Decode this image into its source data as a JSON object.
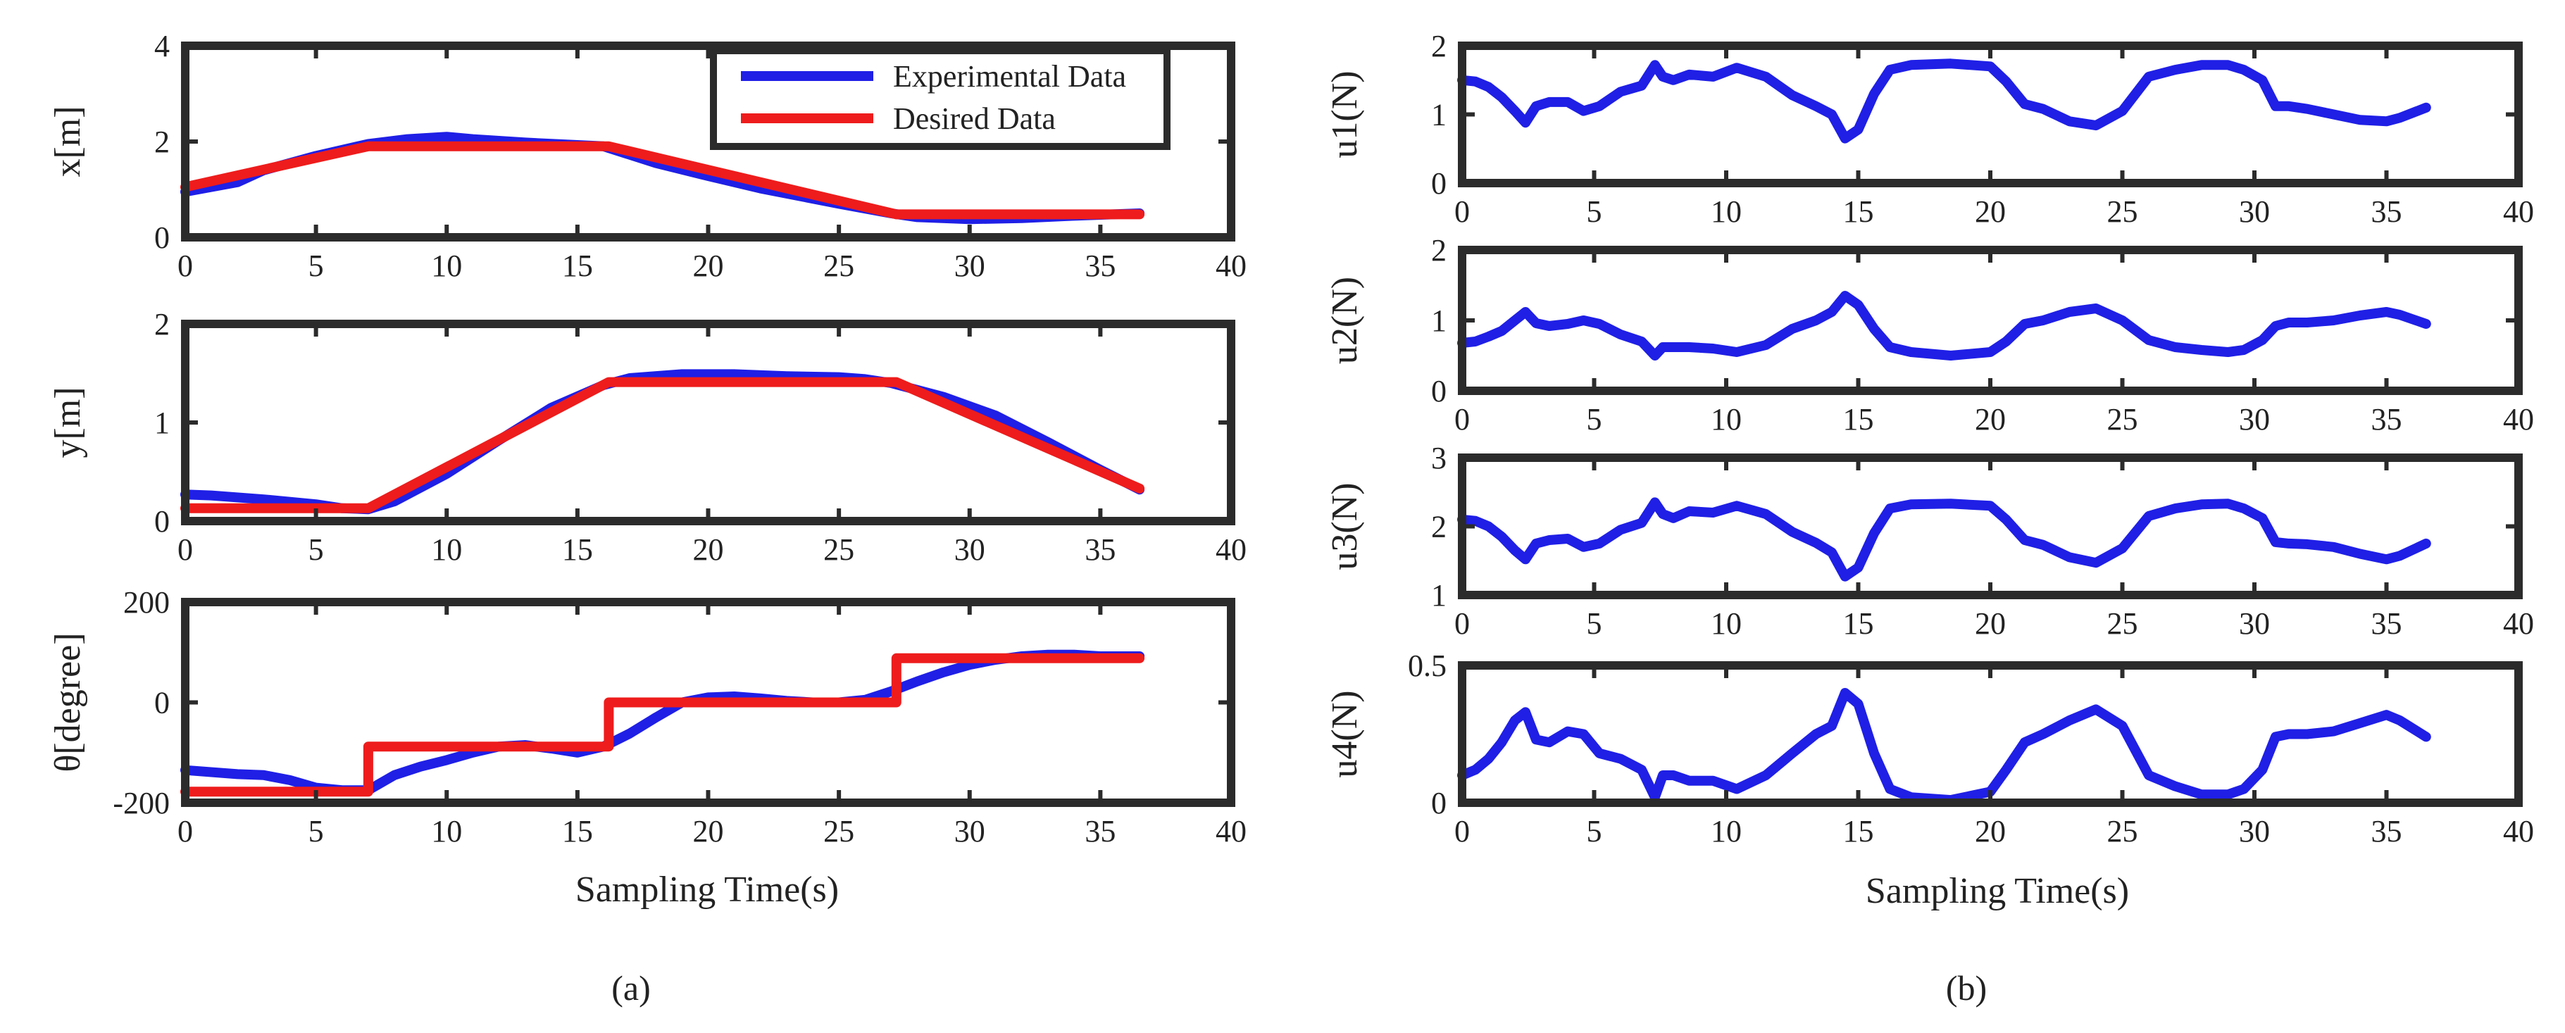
{
  "colors": {
    "experimental": "#1f1fe6",
    "desired": "#ee1c1c",
    "axis": "#2b2b2b"
  },
  "legend": {
    "experimental": "Experimental Data",
    "desired": "Desired Data",
    "placement": "top-right of first panel"
  },
  "captions": {
    "a": "(a)",
    "b": "(b)"
  },
  "xlabel": "Sampling Time(s)",
  "chart_data": [
    {
      "type": "line",
      "panel": "a1",
      "ylabel": "x[m]",
      "xlim": [
        0,
        40
      ],
      "ylim": [
        0,
        4
      ],
      "xticks": [
        0,
        5,
        10,
        15,
        20,
        25,
        30,
        35,
        40
      ],
      "yticks": [
        0,
        2,
        4
      ],
      "series": [
        {
          "name": "Experimental Data",
          "color_key": "experimental",
          "x": [
            0,
            2,
            3,
            5,
            7,
            8.5,
            10,
            11,
            13,
            16,
            18,
            20,
            22,
            25,
            27,
            28,
            30,
            32,
            34,
            36.5
          ],
          "y": [
            0.95,
            1.15,
            1.4,
            1.7,
            1.95,
            2.05,
            2.1,
            2.05,
            1.98,
            1.9,
            1.55,
            1.28,
            1.02,
            0.7,
            0.5,
            0.42,
            0.38,
            0.4,
            0.45,
            0.5
          ]
        },
        {
          "name": "Desired Data",
          "color_key": "desired",
          "x": [
            0,
            7,
            16.2,
            27.2,
            36.5
          ],
          "y": [
            1.05,
            1.9,
            1.9,
            0.48,
            0.48
          ]
        }
      ]
    },
    {
      "type": "line",
      "panel": "a2",
      "ylabel": "y[m]",
      "xlim": [
        0,
        40
      ],
      "ylim": [
        0,
        2
      ],
      "xticks": [
        0,
        5,
        10,
        15,
        20,
        25,
        30,
        35,
        40
      ],
      "yticks": [
        0,
        1,
        2
      ],
      "series": [
        {
          "name": "Experimental Data",
          "color_key": "experimental",
          "x": [
            0,
            1,
            3,
            5,
            6,
            7,
            8,
            10,
            12,
            14,
            16,
            17,
            19,
            21,
            23,
            25,
            26,
            27,
            29,
            31,
            33,
            35,
            36.5
          ],
          "y": [
            0.27,
            0.26,
            0.22,
            0.17,
            0.13,
            0.12,
            0.2,
            0.48,
            0.82,
            1.15,
            1.38,
            1.45,
            1.49,
            1.49,
            1.47,
            1.46,
            1.44,
            1.4,
            1.26,
            1.07,
            0.8,
            0.52,
            0.32
          ]
        },
        {
          "name": "Desired Data",
          "color_key": "desired",
          "x": [
            0,
            7,
            16.2,
            27.2,
            36.5
          ],
          "y": [
            0.13,
            0.13,
            1.41,
            1.41,
            0.33
          ]
        }
      ]
    },
    {
      "type": "line",
      "panel": "a3",
      "ylabel": "θ[degree]",
      "xlim": [
        0,
        40
      ],
      "ylim": [
        -200,
        200
      ],
      "xticks": [
        0,
        5,
        10,
        15,
        20,
        25,
        30,
        35,
        40
      ],
      "yticks": [
        -200,
        0,
        200
      ],
      "series": [
        {
          "name": "Experimental Data",
          "color_key": "experimental",
          "x": [
            0,
            2,
            3,
            4,
            5,
            6,
            7,
            8,
            9,
            10,
            11,
            12,
            13,
            14,
            15,
            16,
            17,
            18,
            19,
            20,
            21,
            22,
            23,
            24,
            25,
            26,
            27,
            28,
            29,
            30,
            31,
            32,
            33,
            34,
            35,
            36.5
          ],
          "y": [
            -135,
            -143,
            -145,
            -155,
            -170,
            -175,
            -175,
            -145,
            -128,
            -115,
            -100,
            -88,
            -85,
            -92,
            -100,
            -88,
            -62,
            -30,
            0,
            10,
            12,
            8,
            3,
            0,
            0,
            5,
            22,
            42,
            60,
            75,
            85,
            92,
            95,
            95,
            92,
            92
          ]
        },
        {
          "name": "Desired Data",
          "color_key": "desired",
          "x": [
            0,
            7,
            7,
            16.2,
            16.2,
            27.2,
            27.2,
            36.5
          ],
          "y": [
            -178,
            -178,
            -88,
            -88,
            0,
            0,
            88,
            88
          ]
        }
      ]
    },
    {
      "type": "line",
      "panel": "b1",
      "ylabel": "u1(N)",
      "xlim": [
        0,
        40
      ],
      "ylim": [
        0,
        2
      ],
      "xticks": [
        0,
        5,
        10,
        15,
        20,
        25,
        30,
        35,
        40
      ],
      "yticks": [
        0,
        1,
        2
      ],
      "series": [
        {
          "name": "u1",
          "color_key": "experimental",
          "x": [
            0,
            0.5,
            1,
            1.5,
            2,
            2.4,
            2.8,
            3.3,
            4,
            4.6,
            5.2,
            6,
            6.8,
            7.3,
            7.6,
            8,
            8.6,
            9.5,
            10.4,
            11.5,
            12.5,
            13.4,
            14,
            14.5,
            15,
            15.6,
            16.2,
            17,
            18.5,
            20,
            20.6,
            21.3,
            22,
            23,
            24,
            25,
            26,
            27,
            28,
            29,
            29.6,
            30.3,
            30.8,
            31.3,
            32,
            33,
            34,
            35,
            35.5,
            36.5
          ],
          "y": [
            1.5,
            1.48,
            1.4,
            1.25,
            1.05,
            0.88,
            1.12,
            1.18,
            1.18,
            1.05,
            1.12,
            1.33,
            1.42,
            1.72,
            1.55,
            1.5,
            1.58,
            1.55,
            1.68,
            1.55,
            1.28,
            1.12,
            1.0,
            0.65,
            0.78,
            1.3,
            1.65,
            1.72,
            1.74,
            1.7,
            1.48,
            1.15,
            1.08,
            0.9,
            0.84,
            1.05,
            1.55,
            1.65,
            1.72,
            1.72,
            1.65,
            1.5,
            1.12,
            1.12,
            1.08,
            1.0,
            0.92,
            0.9,
            0.95,
            1.1
          ]
        }
      ]
    },
    {
      "type": "line",
      "panel": "b2",
      "ylabel": "u2(N)",
      "xlim": [
        0,
        40
      ],
      "ylim": [
        0,
        2
      ],
      "xticks": [
        0,
        5,
        10,
        15,
        20,
        25,
        30,
        35,
        40
      ],
      "yticks": [
        0,
        1,
        2
      ],
      "series": [
        {
          "name": "u2",
          "color_key": "experimental",
          "x": [
            0,
            0.5,
            1,
            1.5,
            2,
            2.4,
            2.8,
            3.3,
            4,
            4.6,
            5.2,
            6,
            6.8,
            7.3,
            7.6,
            8,
            8.6,
            9.5,
            10.4,
            11.5,
            12.5,
            13.4,
            14,
            14.5,
            15,
            15.6,
            16.2,
            17,
            18.5,
            20,
            20.6,
            21.3,
            22,
            23,
            24,
            25,
            26,
            27,
            28,
            29,
            29.6,
            30.3,
            30.8,
            31.3,
            32,
            33,
            34,
            35,
            35.5,
            36.5
          ],
          "y": [
            0.68,
            0.7,
            0.77,
            0.85,
            1.0,
            1.12,
            0.96,
            0.92,
            0.95,
            1.0,
            0.95,
            0.8,
            0.7,
            0.5,
            0.62,
            0.62,
            0.62,
            0.6,
            0.55,
            0.65,
            0.88,
            1.0,
            1.12,
            1.35,
            1.22,
            0.88,
            0.62,
            0.55,
            0.5,
            0.55,
            0.7,
            0.95,
            1.0,
            1.12,
            1.17,
            1.0,
            0.72,
            0.62,
            0.58,
            0.55,
            0.58,
            0.72,
            0.92,
            0.97,
            0.97,
            1.0,
            1.07,
            1.12,
            1.08,
            0.95
          ]
        }
      ]
    },
    {
      "type": "line",
      "panel": "b3",
      "ylabel": "u3(N)",
      "xlim": [
        0,
        40
      ],
      "ylim": [
        1,
        3
      ],
      "xticks": [
        0,
        5,
        10,
        15,
        20,
        25,
        30,
        35,
        40
      ],
      "yticks": [
        1,
        2,
        3
      ],
      "series": [
        {
          "name": "u3",
          "color_key": "experimental",
          "x": [
            0,
            0.5,
            1,
            1.5,
            2,
            2.4,
            2.8,
            3.3,
            4,
            4.6,
            5.2,
            6,
            6.8,
            7.3,
            7.6,
            8,
            8.6,
            9.5,
            10.4,
            11.5,
            12.5,
            13.4,
            14,
            14.5,
            15,
            15.6,
            16.2,
            17,
            18.5,
            20,
            20.6,
            21.3,
            22,
            23,
            24,
            25,
            26,
            27,
            28,
            29,
            29.6,
            30.3,
            30.8,
            31.3,
            32,
            33,
            34,
            35,
            35.5,
            36.5
          ],
          "y": [
            2.1,
            2.08,
            2.0,
            1.85,
            1.65,
            1.52,
            1.75,
            1.8,
            1.82,
            1.7,
            1.75,
            1.95,
            2.05,
            2.35,
            2.18,
            2.12,
            2.22,
            2.2,
            2.3,
            2.18,
            1.92,
            1.76,
            1.62,
            1.27,
            1.4,
            1.9,
            2.26,
            2.32,
            2.33,
            2.3,
            2.1,
            1.8,
            1.73,
            1.55,
            1.47,
            1.68,
            2.15,
            2.26,
            2.32,
            2.33,
            2.26,
            2.12,
            1.77,
            1.75,
            1.74,
            1.7,
            1.6,
            1.52,
            1.57,
            1.75
          ]
        }
      ]
    },
    {
      "type": "line",
      "panel": "b4",
      "ylabel": "u4(N)",
      "xlim": [
        0,
        40
      ],
      "ylim": [
        0,
        0.5
      ],
      "xticks": [
        0,
        5,
        10,
        15,
        20,
        25,
        30,
        35,
        40
      ],
      "yticks": [
        0,
        0.5
      ],
      "series": [
        {
          "name": "u4",
          "color_key": "experimental",
          "x": [
            0,
            0.5,
            1,
            1.5,
            2,
            2.4,
            2.8,
            3.3,
            4,
            4.6,
            5.2,
            6,
            6.8,
            7.3,
            7.6,
            8,
            8.6,
            9.5,
            10.4,
            11.5,
            12.5,
            13.4,
            14,
            14.5,
            15,
            15.6,
            16.2,
            17,
            18.5,
            20,
            20.6,
            21.3,
            22,
            23,
            24,
            25,
            26,
            27,
            28,
            29,
            29.6,
            30.3,
            30.8,
            31.3,
            32,
            33,
            34,
            35,
            35.5,
            36.5
          ],
          "y": [
            0.1,
            0.12,
            0.16,
            0.22,
            0.3,
            0.33,
            0.23,
            0.22,
            0.26,
            0.25,
            0.18,
            0.16,
            0.12,
            0.02,
            0.1,
            0.1,
            0.08,
            0.08,
            0.05,
            0.1,
            0.18,
            0.25,
            0.28,
            0.4,
            0.36,
            0.18,
            0.05,
            0.02,
            0.01,
            0.04,
            0.12,
            0.22,
            0.25,
            0.3,
            0.34,
            0.28,
            0.1,
            0.06,
            0.03,
            0.03,
            0.05,
            0.12,
            0.24,
            0.25,
            0.25,
            0.26,
            0.29,
            0.32,
            0.3,
            0.24
          ]
        }
      ]
    }
  ]
}
